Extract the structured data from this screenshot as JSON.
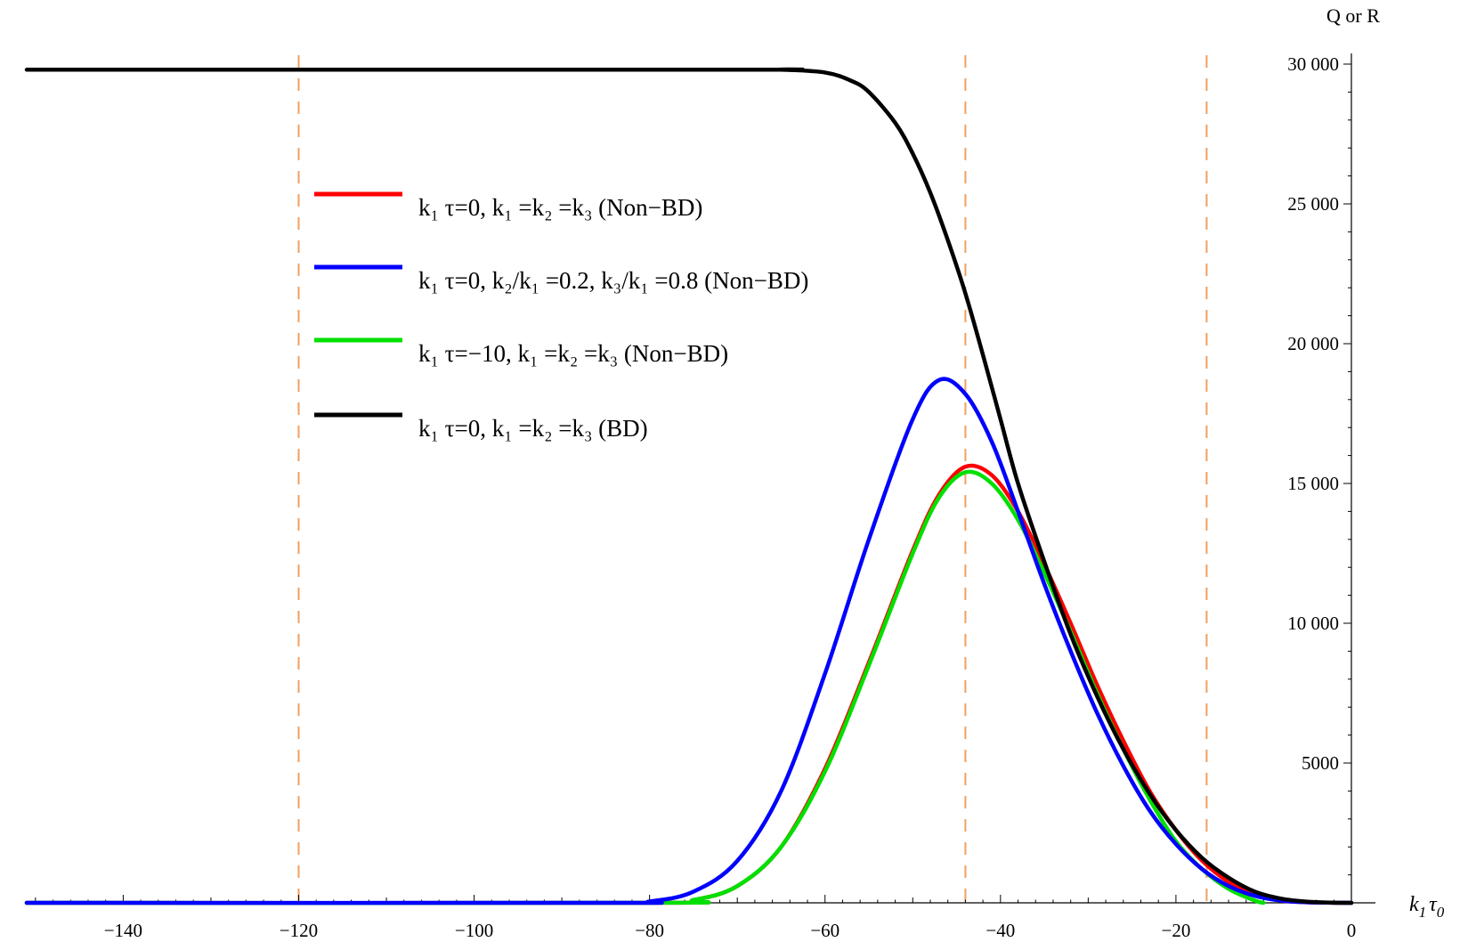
{
  "chart_data": {
    "type": "line",
    "title": "",
    "xlabel": "k1 τ0",
    "xlabel_parts": {
      "main": "k",
      "sub1": "1",
      "mid": "τ",
      "sub2": "0"
    },
    "ylabel": "Q or R",
    "xlim": [
      -151,
      0
    ],
    "ylim": [
      0,
      30000
    ],
    "x_ticks": [
      -140,
      -120,
      -100,
      -80,
      -60,
      -40,
      -20,
      0
    ],
    "x_tick_labels": [
      "−140",
      "−120",
      "−100",
      "−80",
      "−60",
      "−40",
      "−20",
      "0"
    ],
    "y_ticks": [
      5000,
      10000,
      15000,
      20000,
      25000,
      30000
    ],
    "y_tick_labels": [
      "5000",
      "10 000",
      "15 000",
      "20 000",
      "25 000",
      "30 000"
    ],
    "grid": false,
    "legend_position": "upper-left",
    "vertical_dashed_lines": {
      "x": [
        -120,
        -44,
        -16.5
      ],
      "color": "#f0a060"
    },
    "series": [
      {
        "name": "k1 τ=0, k1=k2=k3 (Non−BD)",
        "color": "#ff0000",
        "legend_label": "k₁ τ=0, k₁ =k₂ =k₃  (Non−BD)",
        "x": [
          -151,
          -80,
          -75,
          -70,
          -65,
          -60,
          -55,
          -50,
          -47,
          -44,
          -41,
          -38,
          -35,
          -32,
          -29,
          -26,
          -23,
          -20,
          -17,
          -14,
          -11,
          -8,
          -5,
          -2,
          0
        ],
        "values": [
          0,
          0,
          100,
          600,
          2000,
          4800,
          8600,
          12600,
          14600,
          15600,
          15300,
          14000,
          12100,
          10000,
          7800,
          5800,
          4000,
          2600,
          1500,
          750,
          300,
          80,
          20,
          5,
          0
        ]
      },
      {
        "name": "k1 τ=0, k2/k1=0.2, k3/k1=0.8 (Non−BD)",
        "color": "#0000ff",
        "legend_label": "k₁ τ=0, k₂/k₁ =0.2, k₃/k₁ =0.8  (Non−BD)",
        "x": [
          -151,
          -85,
          -80,
          -75,
          -70,
          -65,
          -60,
          -55,
          -50,
          -47,
          -44,
          -41,
          -38,
          -35,
          -32,
          -29,
          -26,
          -23,
          -20,
          -17,
          -14,
          -11,
          -8,
          -5,
          -2,
          0
        ],
        "values": [
          0,
          0,
          50,
          400,
          1500,
          4000,
          8200,
          13000,
          17300,
          18700,
          18200,
          16500,
          14000,
          11400,
          9000,
          6800,
          4900,
          3300,
          2100,
          1200,
          600,
          250,
          80,
          20,
          5,
          0
        ]
      },
      {
        "name": "k1 τ=−10, k1=k2=k3 (Non−BD)",
        "color": "#00e000",
        "legend_label": "k₁ τ=−10, k₁ =k₂ =k₃  (Non−BD)",
        "x": [
          -151,
          -80,
          -75,
          -70,
          -65,
          -60,
          -55,
          -50,
          -47,
          -44,
          -41,
          -38,
          -35,
          -32,
          -29,
          -26,
          -23,
          -20,
          -17,
          -14,
          -11,
          -10
        ],
        "values": [
          0,
          0,
          100,
          600,
          2000,
          4700,
          8500,
          12500,
          14500,
          15400,
          15000,
          13700,
          11800,
          9700,
          7500,
          5500,
          3700,
          2200,
          1200,
          500,
          80,
          0
        ]
      },
      {
        "name": "k1 τ=0, k1=k2=k3 (BD)",
        "color": "#000000",
        "legend_label": "k₁ τ=0, k₁ =k₂ =k₃  (BD)",
        "x": [
          -151,
          -70,
          -65,
          -60,
          -57,
          -55,
          -52,
          -50,
          -48,
          -46,
          -44,
          -42,
          -40,
          -38,
          -35,
          -32,
          -29,
          -26,
          -23,
          -20,
          -17,
          -14,
          -11,
          -8,
          -5,
          -2,
          0
        ],
        "values": [
          29800,
          29800,
          29800,
          29700,
          29400,
          29000,
          27900,
          26800,
          25400,
          23700,
          21800,
          19600,
          17300,
          15000,
          12200,
          9600,
          7400,
          5500,
          3900,
          2600,
          1600,
          900,
          400,
          150,
          40,
          5,
          0
        ]
      }
    ]
  }
}
